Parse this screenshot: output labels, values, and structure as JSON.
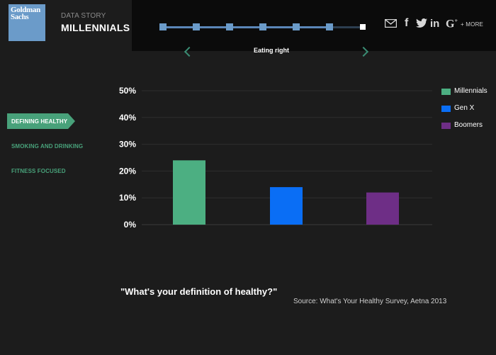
{
  "header": {
    "logo_line1": "Goldman",
    "logo_line2": "Sachs",
    "story_label": "DATA STORY",
    "story_title": "MILLENNIALS",
    "progress_nodes": 7,
    "current_node": 7,
    "share_more": "+ MORE",
    "share_icons": [
      "email-icon",
      "facebook-icon",
      "twitter-icon",
      "linkedin-icon",
      "google-plus-icon"
    ],
    "slide_caption": "Eating right"
  },
  "sidebar": {
    "items": [
      {
        "label": "DEFINING HEALTHY",
        "active": true
      },
      {
        "label": "SMOKING AND DRINKING",
        "active": false
      },
      {
        "label": "FITNESS FOCUSED",
        "active": false
      }
    ]
  },
  "chart_data": {
    "type": "bar",
    "categories": [
      "Millennials",
      "Gen X",
      "Boomers"
    ],
    "values": [
      24,
      14,
      12
    ],
    "unit": "%",
    "ylim": [
      0,
      50
    ],
    "yticks": [
      "0%",
      "10%",
      "20%",
      "30%",
      "40%",
      "50%"
    ],
    "colors": [
      "#4caf82",
      "#0a6ef5",
      "#6e2e86"
    ],
    "grid": true,
    "legend_position": "top-right",
    "xlabel": "",
    "ylabel": ""
  },
  "legend": [
    {
      "label": "Millennials",
      "color": "#4caf82"
    },
    {
      "label": "Gen X",
      "color": "#0a6ef5"
    },
    {
      "label": "Boomers",
      "color": "#6e2e86"
    }
  ],
  "question": "\"What's your definition of healthy?\"",
  "source": "Source: What's Your Healthy Survey, Aetna 2013"
}
